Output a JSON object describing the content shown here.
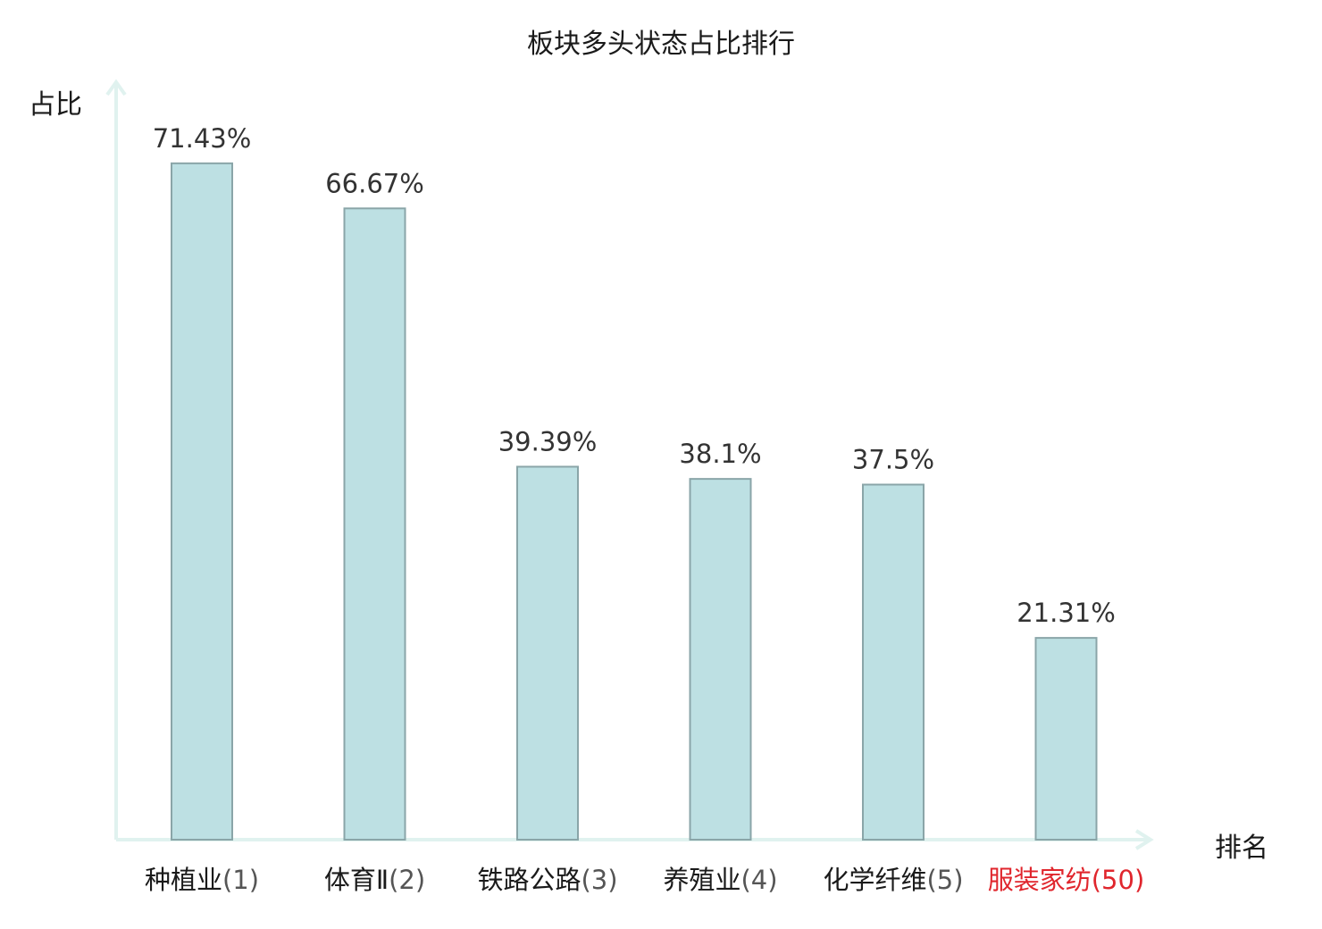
{
  "chart_data": {
    "type": "bar",
    "title": "板块多头状态占比排行",
    "ylabel": "占比",
    "xlabel": "排名",
    "categories": [
      "种植业",
      "体育Ⅱ",
      "铁路公路",
      "养殖业",
      "化学纤维",
      "服装家纺"
    ],
    "ranks": [
      "(1)",
      "(2)",
      "(3)",
      "(4)",
      "(5)",
      "(50)"
    ],
    "values": [
      71.43,
      66.67,
      39.39,
      38.1,
      37.5,
      21.31
    ],
    "value_labels": [
      "71.43%",
      "66.67%",
      "39.39%",
      "38.1%",
      "37.5%",
      "21.31%"
    ],
    "highlight_index": 5,
    "ylim": [
      0,
      80
    ],
    "grid": false,
    "colors": {
      "bar_fill": "#bde0e3",
      "bar_stroke": "#8aa5a8",
      "axis": "#e0f2ef",
      "highlight": "#e0262d"
    }
  }
}
